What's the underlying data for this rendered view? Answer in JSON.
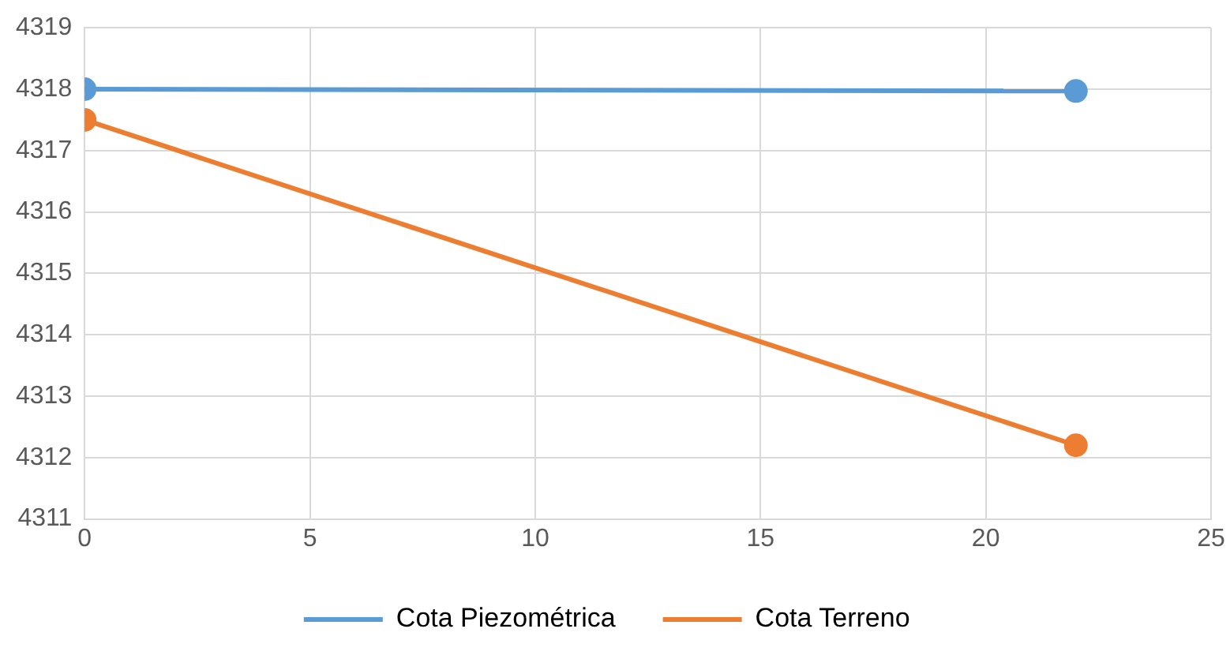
{
  "chart_data": {
    "type": "line",
    "x": [
      0,
      22
    ],
    "series": [
      {
        "name": "Cota Piezométrica",
        "color": "#5b9bd5",
        "values": [
          4318,
          4317.97
        ]
      },
      {
        "name": "Cota Terreno",
        "color": "#ed7d31",
        "values": [
          4317.5,
          4312.2
        ]
      }
    ],
    "xlim": [
      0,
      25
    ],
    "xticks": [
      0,
      5,
      10,
      15,
      20,
      25
    ],
    "ylim": [
      4311,
      4319
    ],
    "yticks": [
      4311,
      4312,
      4313,
      4314,
      4315,
      4316,
      4317,
      4318,
      4319
    ],
    "grid": true,
    "legend": "bottom",
    "marker": "circle",
    "line_style": "solid"
  }
}
